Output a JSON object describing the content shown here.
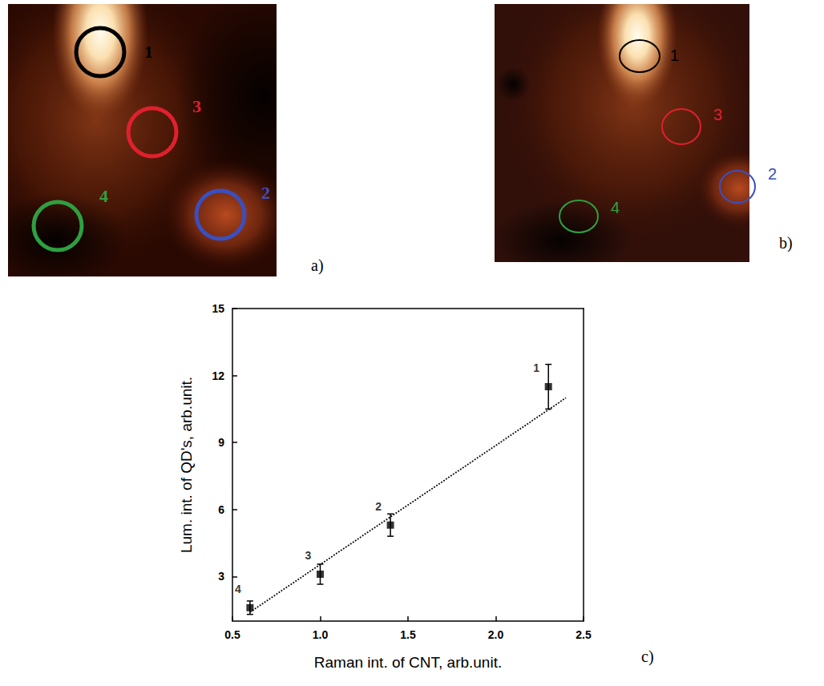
{
  "panels": [
    {
      "letter": "a)",
      "markers": [
        {
          "label": "1",
          "color": "#000000"
        },
        {
          "label": "3",
          "color": "#e0202e"
        },
        {
          "label": "2",
          "color": "#3a4fc0"
        },
        {
          "label": "4",
          "color": "#2ea040"
        }
      ]
    },
    {
      "letter": "b)",
      "markers": [
        {
          "label": "1",
          "color": "#000000"
        },
        {
          "label": "3",
          "color": "#e0202e"
        },
        {
          "label": "2",
          "color": "#3a4fc0"
        },
        {
          "label": "4",
          "color": "#2ea040"
        }
      ]
    }
  ],
  "chart_data": {
    "type": "scatter",
    "letter": "c)",
    "xlabel": "Raman int. of CNT, arb.unit.",
    "ylabel": "Lum. int. of QD's, arb.unit.",
    "x": [
      0.6,
      1.0,
      1.4,
      2.3
    ],
    "values": [
      1.6,
      3.1,
      5.3,
      11.5
    ],
    "errors": [
      0.3,
      0.45,
      0.5,
      1.0
    ],
    "point_labels": [
      "4",
      "3",
      "2",
      "1"
    ],
    "color": "#000000",
    "marker": "square",
    "fit": {
      "x": [
        0.6,
        2.4
      ],
      "values": [
        1.4,
        11.0
      ],
      "line_style": "dotted",
      "color": "#000000"
    },
    "xlim": [
      0.5,
      2.5
    ],
    "xticks": [
      0.5,
      {
        "value": 1,
        "label": "1.0"
      },
      1.5,
      {
        "value": 2,
        "label": "2.0"
      },
      2.5
    ],
    "ylim": [
      1,
      15
    ],
    "yticks": [
      3,
      6,
      9,
      12,
      15
    ],
    "grid": false
  }
}
